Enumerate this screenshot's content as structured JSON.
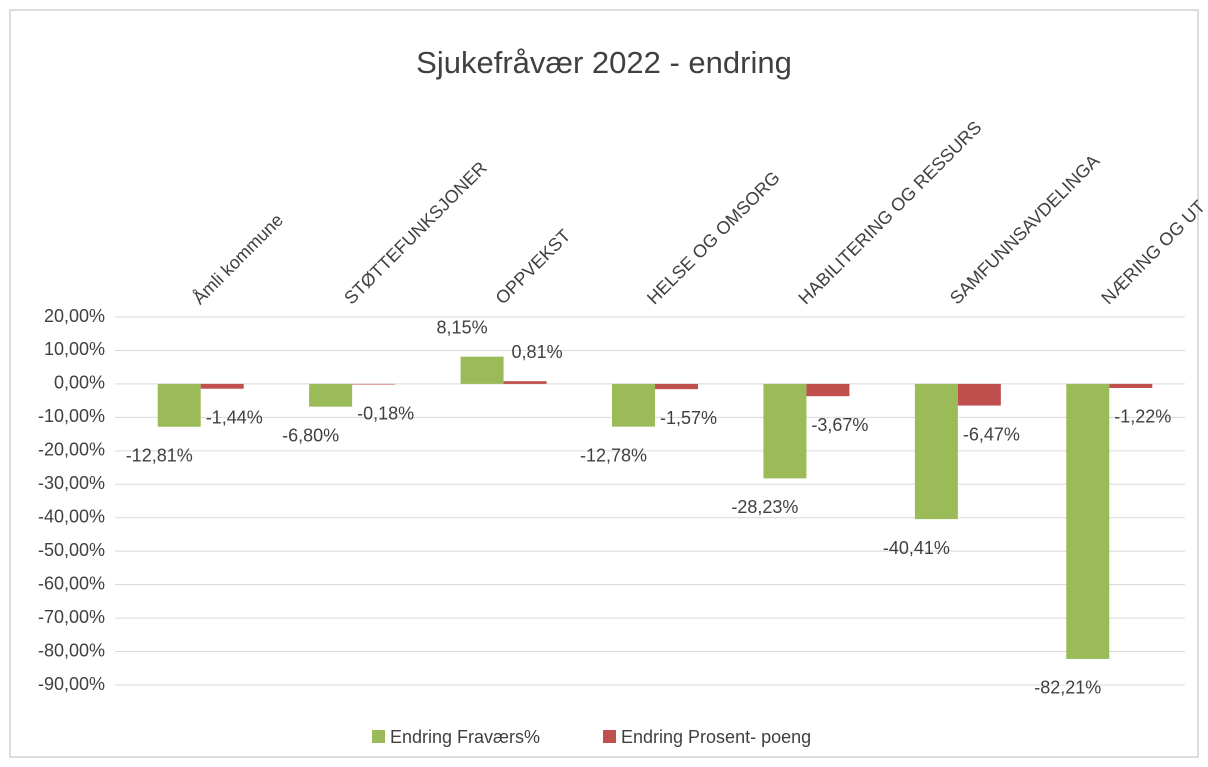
{
  "chart_data": {
    "type": "bar",
    "title": "Sjukefråvær 2022 - endring",
    "categories": [
      "Åmli kommune",
      "STØTTEFUNKSJONER",
      "OPPVEKST",
      "HELSE OG OMSORG",
      "HABILITERING OG RESSURS",
      "SAMFUNNSAVDELINGA",
      "NÆRING OG UT"
    ],
    "series": [
      {
        "name": "Endring Fraværs%",
        "color": "#9bbb59",
        "values": [
          -12.81,
          -6.8,
          8.15,
          -12.78,
          -28.23,
          -40.41,
          -82.21
        ],
        "value_labels": [
          "-12,81%",
          "-6,80%",
          "8,15%",
          "-12,78%",
          "-28,23%",
          "-40,41%",
          "-82,21%"
        ]
      },
      {
        "name": "Endring Prosent- poeng",
        "color": "#c0504d",
        "values": [
          -1.44,
          -0.18,
          0.81,
          -1.57,
          -3.67,
          -6.47,
          -1.22
        ],
        "value_labels": [
          "-1,44%",
          "-0,18%",
          "0,81%",
          "-1,57%",
          "-3,67%",
          "-6,47%",
          "-1,22%"
        ]
      }
    ],
    "ylim": [
      -90,
      20
    ],
    "yticks": [
      {
        "value": 20,
        "label": "20,00%"
      },
      {
        "value": 10,
        "label": "10,00%"
      },
      {
        "value": 0,
        "label": "0,00%"
      },
      {
        "value": -10,
        "label": "-10,00%"
      },
      {
        "value": -20,
        "label": "-20,00%"
      },
      {
        "value": -30,
        "label": "-30,00%"
      },
      {
        "value": -40,
        "label": "-40,00%"
      },
      {
        "value": -50,
        "label": "-50,00%"
      },
      {
        "value": -60,
        "label": "-60,00%"
      },
      {
        "value": -70,
        "label": "-70,00%"
      },
      {
        "value": -80,
        "label": "-80,00%"
      },
      {
        "value": -90,
        "label": "-90,00%"
      }
    ],
    "grid": true,
    "legend": "bottom"
  }
}
